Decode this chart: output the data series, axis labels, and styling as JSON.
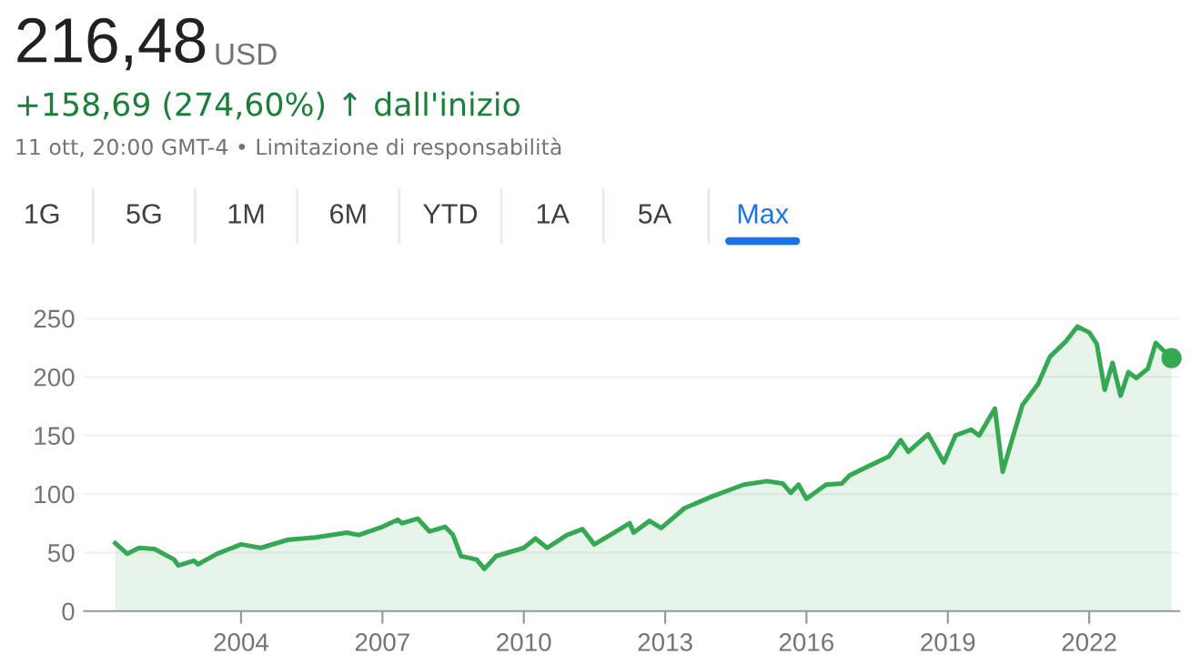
{
  "chart_data": {
    "type": "area",
    "title": "216,48",
    "subtitle": "+158,69 (274,60%) ↑ dall'inizio",
    "annotations": [
      "USD",
      "11 ott, 20:00 GMT-4 • Limitazione di responsabilità",
      "1G",
      "5G",
      "1M",
      "6M",
      "YTD",
      "1A",
      "5A",
      "Max"
    ],
    "series": [
      {
        "color": "#34a853",
        "x": [
          "2001-05",
          "2001-08",
          "2001-11",
          "2002-03",
          "2002-08",
          "2002-09",
          "2003-01",
          "2003-02",
          "2003-07",
          "2004-01",
          "2004-06",
          "2005-01",
          "2005-08",
          "2006-04",
          "2006-07",
          "2007-01",
          "2007-05",
          "2007-06",
          "2007-10",
          "2008-01",
          "2008-05",
          "2008-07",
          "2008-09",
          "2009-01",
          "2009-03",
          "2009-06",
          "2010-01",
          "2010-04",
          "2010-07",
          "2010-12",
          "2011-04",
          "2011-07",
          "2011-11",
          "2012-04",
          "2012-05",
          "2012-09",
          "2012-12",
          "2013-06",
          "2014-01",
          "2014-09",
          "2015-03",
          "2015-07",
          "2015-09",
          "2015-11",
          "2016-01",
          "2016-06",
          "2016-10",
          "2016-12",
          "2017-05",
          "2017-10",
          "2018-01",
          "2018-03",
          "2018-08",
          "2018-12",
          "2019-03",
          "2019-07",
          "2019-09",
          "2020-01",
          "2020-03",
          "2020-05",
          "2020-08",
          "2020-12",
          "2021-03",
          "2021-07",
          "2021-10",
          "2022-01",
          "2022-03",
          "2022-05",
          "2022-07",
          "2022-09",
          "2022-11",
          "2023-01",
          "2023-04",
          "2023-06",
          "2023-10"
        ],
        "values": [
          58,
          49,
          54,
          53,
          44,
          39,
          43,
          40,
          49,
          57,
          54,
          61,
          63,
          67,
          65,
          72,
          78,
          75,
          79,
          68,
          72,
          65,
          47,
          44,
          36,
          47,
          54,
          62,
          54,
          65,
          70,
          57,
          65,
          75,
          67,
          77,
          71,
          88,
          98,
          108,
          111,
          109,
          101,
          108,
          96,
          108,
          109,
          116,
          124,
          132,
          146,
          136,
          151,
          127,
          150,
          155,
          150,
          173,
          119,
          142,
          176,
          194,
          217,
          230,
          243,
          238,
          228,
          189,
          212,
          184,
          204,
          199,
          207,
          229,
          216
        ]
      },
      {
        "type": "scatter",
        "marker": "circle",
        "color": "#34a853",
        "x": [
          "2023-10"
        ],
        "values": [
          216
        ]
      }
    ],
    "xlim": [
      "2000-09",
      "2023-12"
    ],
    "xticks": [
      "2004",
      "2007",
      "2010",
      "2013",
      "2016",
      "2019",
      "2022"
    ],
    "ylim": [
      0,
      250
    ],
    "yticks": [
      0,
      50,
      100,
      150,
      200,
      250
    ],
    "grid": "y"
  }
}
